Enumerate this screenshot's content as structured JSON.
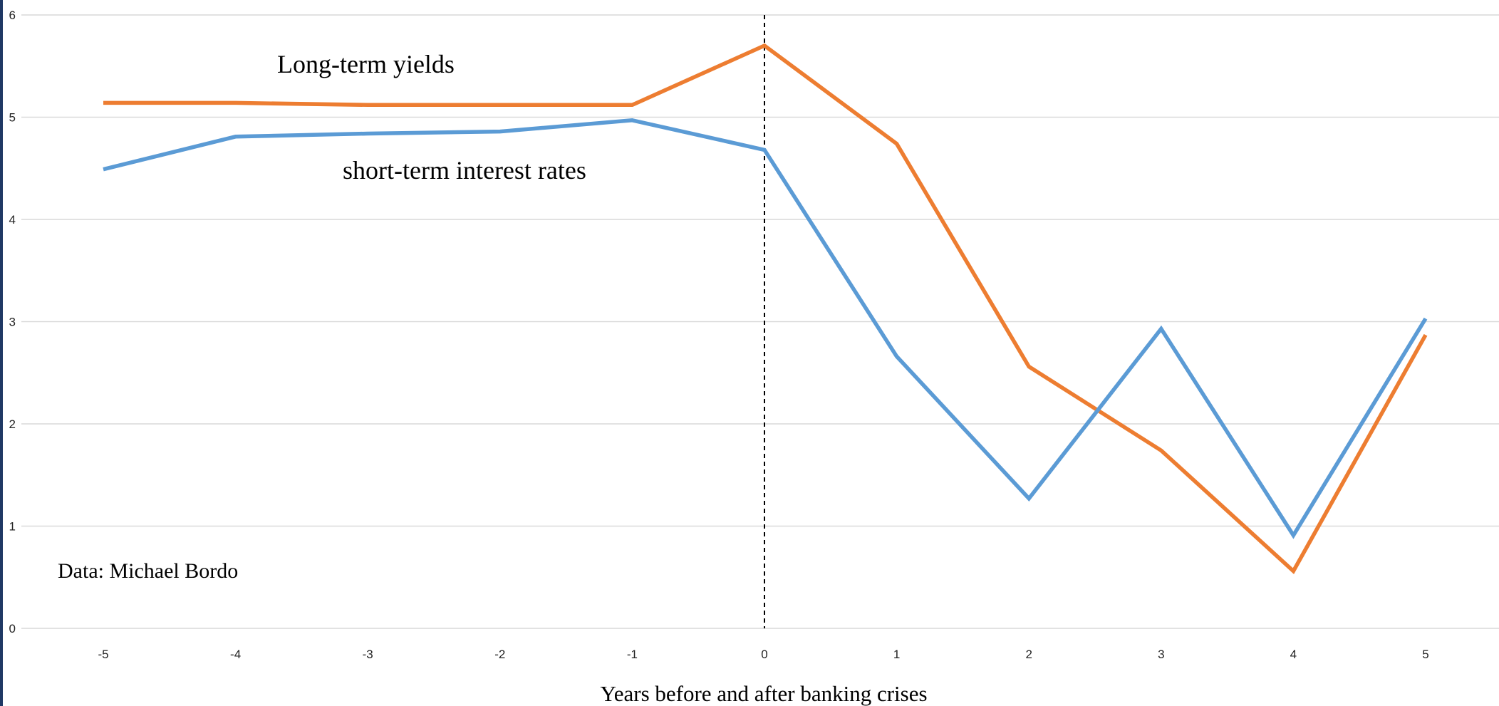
{
  "chart_data": {
    "type": "line",
    "title": "",
    "xlabel": "Years before and after banking crises",
    "ylabel": "",
    "x": [
      -5,
      -4,
      -3,
      -2,
      -1,
      0,
      1,
      2,
      3,
      4,
      5
    ],
    "xticks": [
      "-5",
      "-4",
      "-3",
      "-2",
      "-1",
      "0",
      "1",
      "2",
      "3",
      "4",
      "5"
    ],
    "yticks": [
      "0",
      "1",
      "2",
      "3",
      "4",
      "5",
      "6"
    ],
    "ylim": [
      0,
      6
    ],
    "grid": "horizontal",
    "series": [
      {
        "name": "Long-term yields",
        "color": "#ed7d31",
        "values": [
          5.14,
          5.14,
          5.12,
          5.12,
          5.12,
          5.7,
          4.74,
          2.56,
          1.74,
          0.56,
          2.87
        ]
      },
      {
        "name": "short-term interest rates",
        "color": "#5b9bd5",
        "values": [
          4.49,
          4.81,
          4.84,
          4.86,
          4.97,
          4.68,
          2.66,
          1.27,
          2.93,
          0.91,
          3.03
        ]
      }
    ],
    "reference_line": {
      "x": 0,
      "style": "dashed"
    },
    "annotations": {
      "source": "Data: Michael Bordo"
    }
  }
}
